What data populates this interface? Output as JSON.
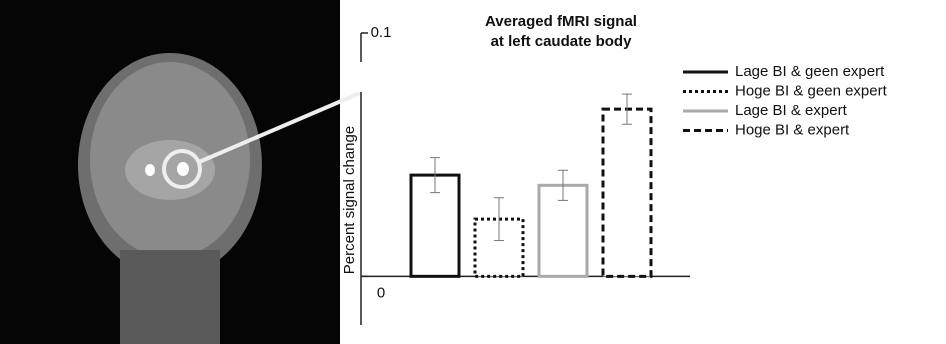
{
  "chart_data": {
    "type": "bar",
    "title": [
      "Averaged fMRI signal",
      "at left caudate body"
    ],
    "y_label": "Percent signal change",
    "ylim": [
      -0.02,
      0.1
    ],
    "yticks": [
      0,
      0.1
    ],
    "series": [
      {
        "name": "Lage BI & geen expert",
        "color": "#111111",
        "dash": "solid",
        "values": [
          0.0416
        ],
        "errors": [
          0.0072
        ]
      },
      {
        "name": "Hoge BI & geen expert",
        "color": "#111111",
        "dash": "dotted",
        "values": [
          0.0235
        ],
        "errors": [
          0.0088
        ]
      },
      {
        "name": "Lage BI & expert",
        "color": "#aaaaaa",
        "dash": "solid",
        "values": [
          0.0374
        ],
        "errors": [
          0.0062
        ]
      },
      {
        "name": "Hoge BI & expert",
        "color": "#111111",
        "dash": "dashed",
        "values": [
          0.0687
        ],
        "errors": [
          0.0062
        ]
      }
    ]
  }
}
